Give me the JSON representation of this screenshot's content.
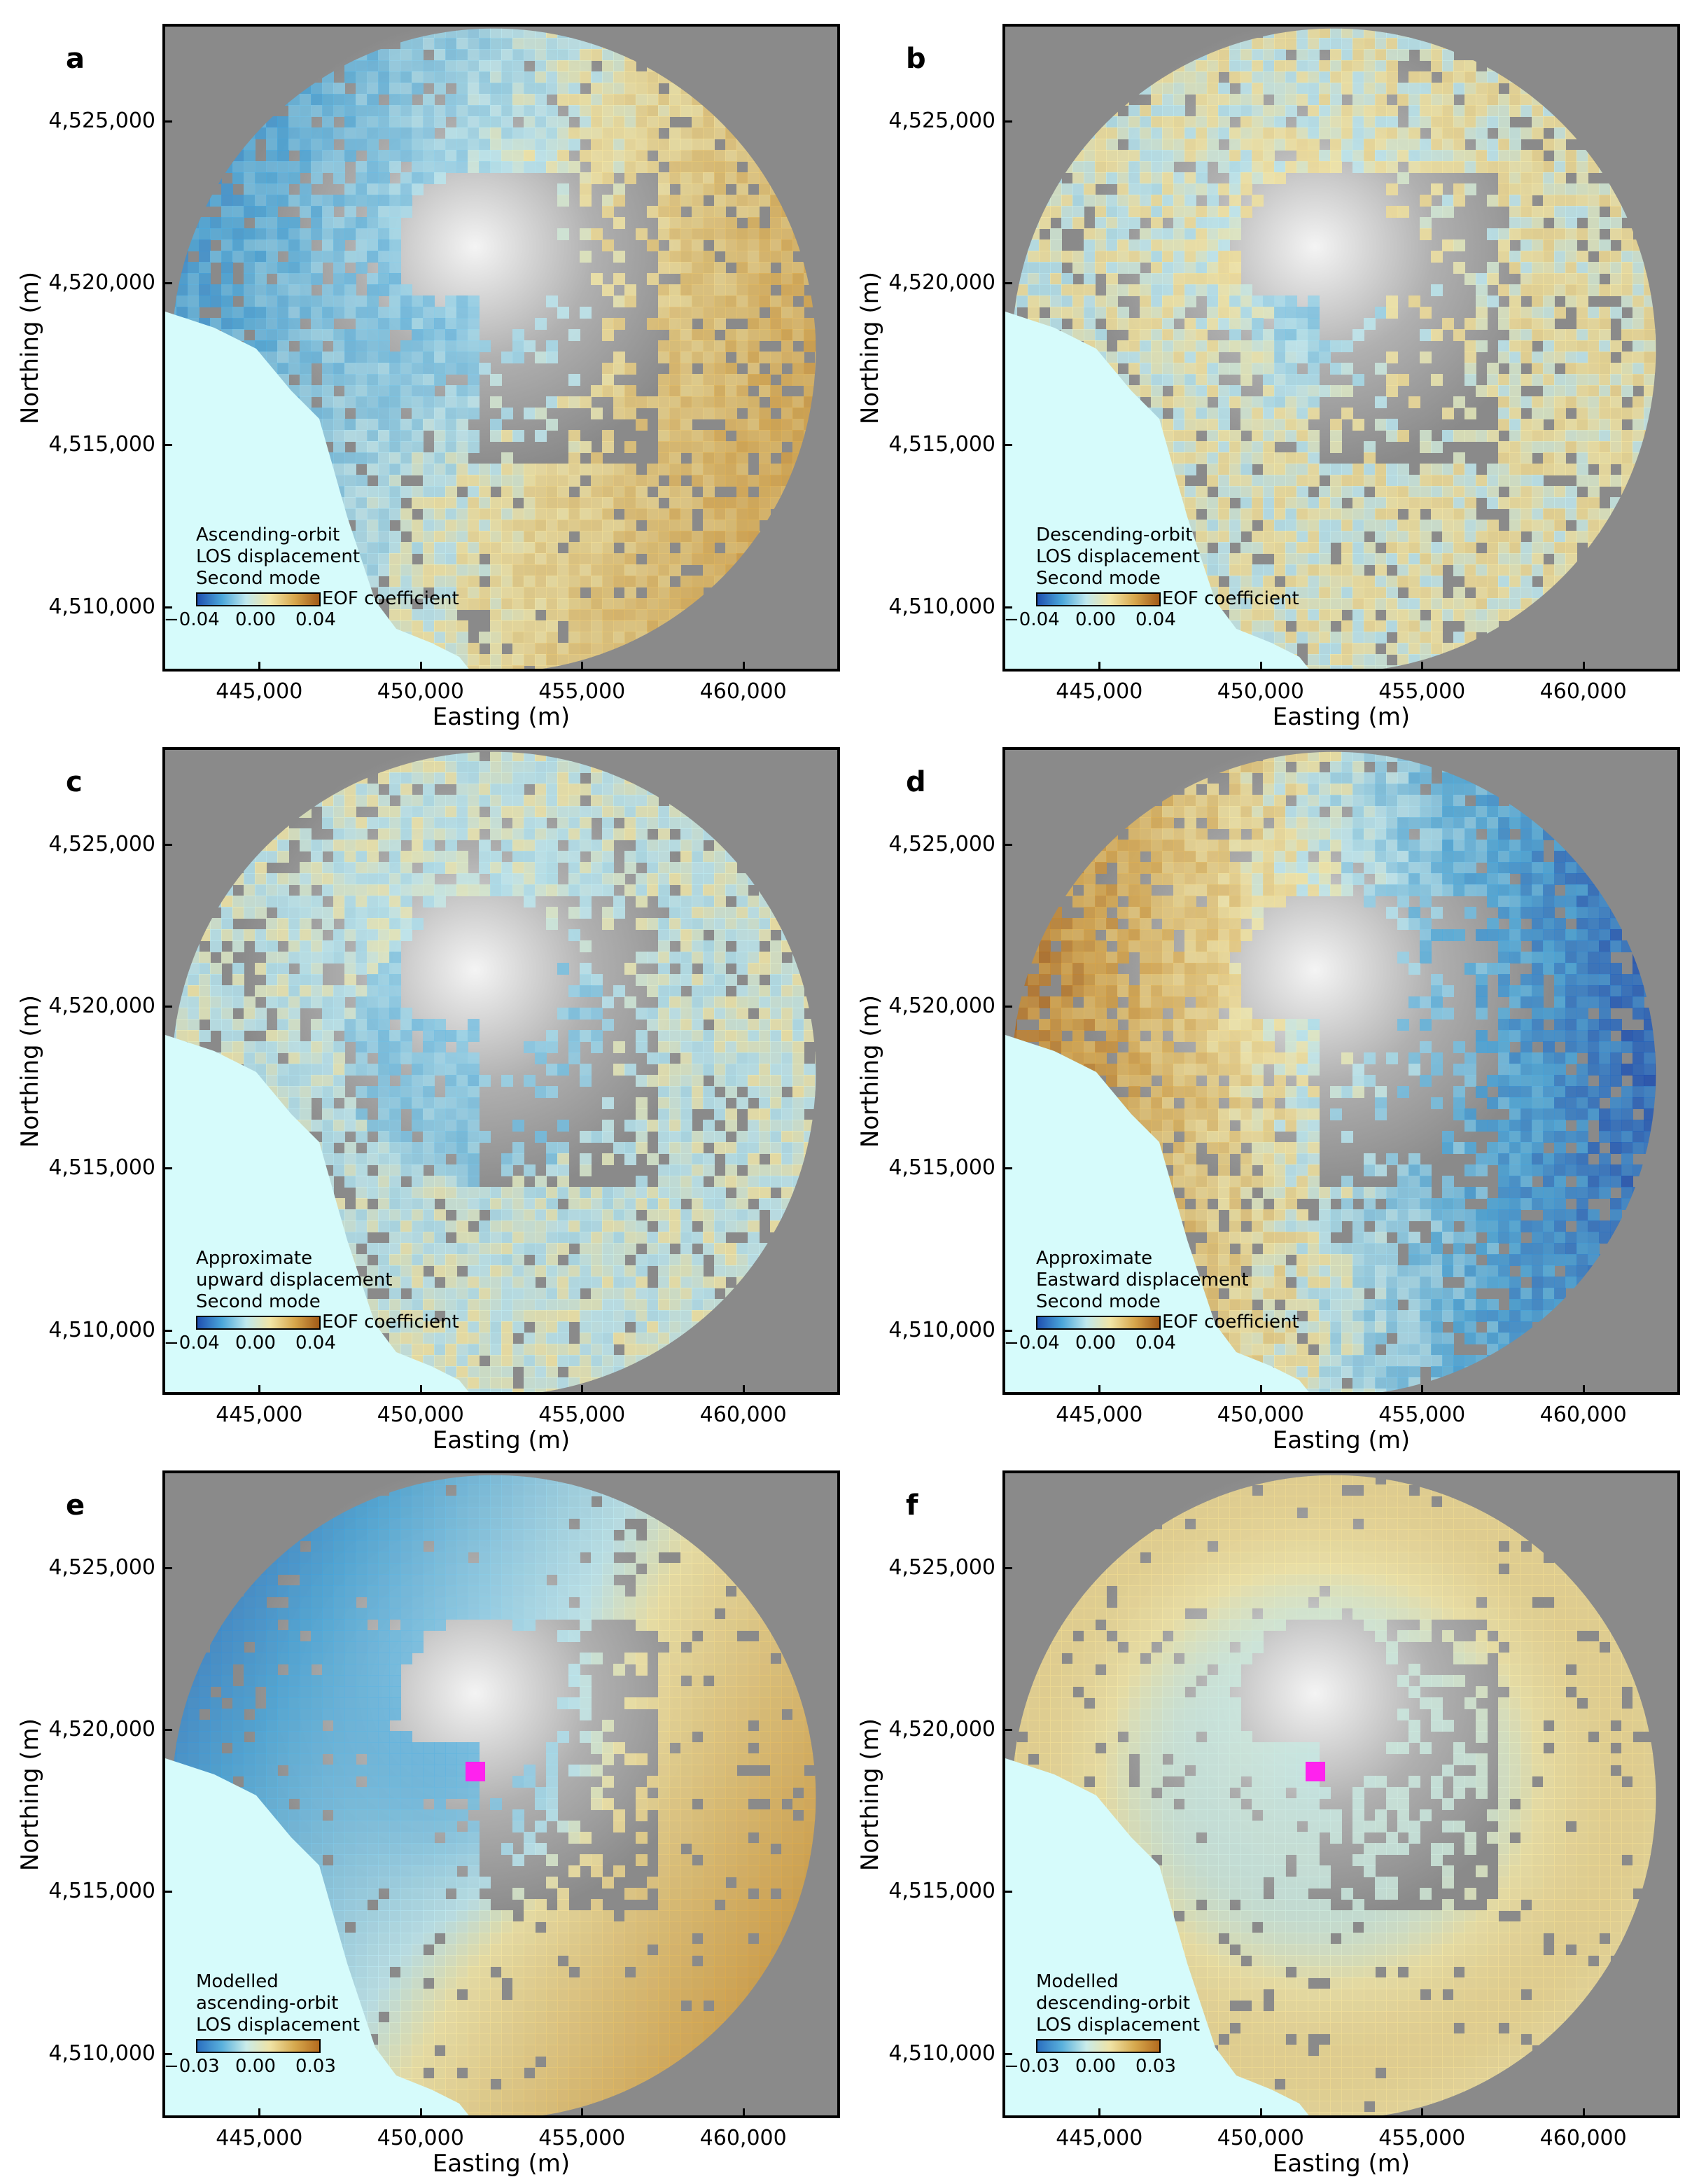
{
  "panels": [
    {
      "id": "a",
      "legend": [
        "Ascending-orbit",
        "LOS displacement",
        "Second mode"
      ],
      "cbar_label": "EOF coefficient",
      "cbar_ticks": [
        "−0.04",
        "0.00",
        "0.04"
      ],
      "pattern": "asc",
      "marker": false
    },
    {
      "id": "b",
      "legend": [
        "Descending-orbit",
        "LOS displacement",
        "Second mode"
      ],
      "cbar_label": "EOF coefficient",
      "cbar_ticks": [
        "−0.04",
        "0.00",
        "0.04"
      ],
      "pattern": "desc",
      "marker": false
    },
    {
      "id": "c",
      "legend": [
        "Approximate",
        "upward displacement",
        "Second mode"
      ],
      "cbar_label": "EOF coefficient",
      "cbar_ticks": [
        "−0.04",
        "0.00",
        "0.04"
      ],
      "pattern": "up",
      "marker": false
    },
    {
      "id": "d",
      "legend": [
        "Approximate",
        "Eastward displacement",
        "Second mode"
      ],
      "cbar_label": "EOF coefficient",
      "cbar_ticks": [
        "−0.04",
        "0.00",
        "0.04"
      ],
      "pattern": "east",
      "marker": false
    },
    {
      "id": "e",
      "legend": [
        "Modelled",
        "ascending-orbit",
        "LOS displacement"
      ],
      "cbar_label": "",
      "cbar_ticks": [
        "−0.03",
        "0.00",
        "0.03"
      ],
      "pattern": "masc",
      "marker": true
    },
    {
      "id": "f",
      "legend": [
        "Modelled",
        "descending-orbit",
        "LOS displacement"
      ],
      "cbar_label": "",
      "cbar_ticks": [
        "−0.03",
        "0.00",
        "0.03"
      ],
      "pattern": "mdesc",
      "marker": true
    }
  ],
  "axes": {
    "xlabel": "Easting (m)",
    "ylabel": "Northing (m)",
    "xticks": [
      "445,000",
      "450,000",
      "455,000",
      "460,000"
    ],
    "yticks": [
      "4,525,000",
      "4,520,000",
      "4,515,000",
      "4,510,000"
    ],
    "x_values": [
      445000,
      450000,
      455000,
      460000
    ],
    "y_values": [
      4525000,
      4520000,
      4515000,
      4510000
    ],
    "xlim": [
      442000,
      463000
    ],
    "ylim": [
      4508000,
      4528000
    ]
  },
  "colors": {
    "sea": "#d6fbfb",
    "land": "#8d8d8d",
    "marker": "#ff22ee"
  },
  "marker_location": {
    "easting": 451600,
    "northing": 4518800
  }
}
